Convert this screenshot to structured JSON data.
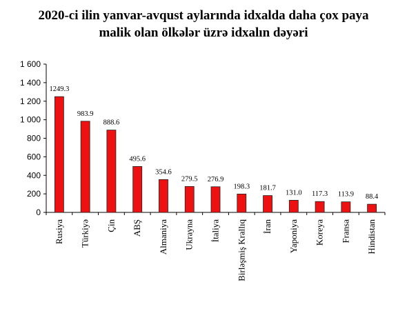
{
  "chart_data": {
    "type": "bar",
    "title": [
      "2020-ci ilin yanvar-avqust aylarında idxalda daha çox paya",
      "malik olan ölkələr üzrə idxalın dəyəri"
    ],
    "categories": [
      "Rusiya",
      "Türkiyə",
      "Çin",
      "ABŞ",
      "Almaniya",
      "Ukrayna",
      "İtaliya",
      "Birləşmiş Krallıq",
      "İran",
      "Yaponiya",
      "Koreya",
      "Fransa",
      "Hindistan"
    ],
    "values": [
      1249.3,
      983.9,
      888.6,
      495.6,
      354.6,
      279.5,
      276.9,
      198.3,
      181.7,
      131.0,
      117.3,
      113.9,
      88.4
    ],
    "value_labels": [
      "1249.3",
      "983.9",
      "888.6",
      "495.6",
      "354.6",
      "279.5",
      "276.9",
      "198.3",
      "181.7",
      "131.0",
      "117.3",
      "113.9",
      "88.4"
    ],
    "yticks": [
      0,
      200,
      400,
      600,
      800,
      1000,
      1200,
      1400,
      1600
    ],
    "ytick_labels": [
      "0",
      "200",
      "400",
      "600",
      "800",
      "1 000",
      "1 200",
      "1 400",
      "1 600"
    ],
    "ylim": [
      0,
      1600
    ],
    "xlabel": "",
    "ylabel": "",
    "grid": false,
    "legend": "none",
    "colors": {
      "bar_fill": "#ee1111",
      "bar_stroke": "#222222",
      "axis": "#000000"
    }
  }
}
